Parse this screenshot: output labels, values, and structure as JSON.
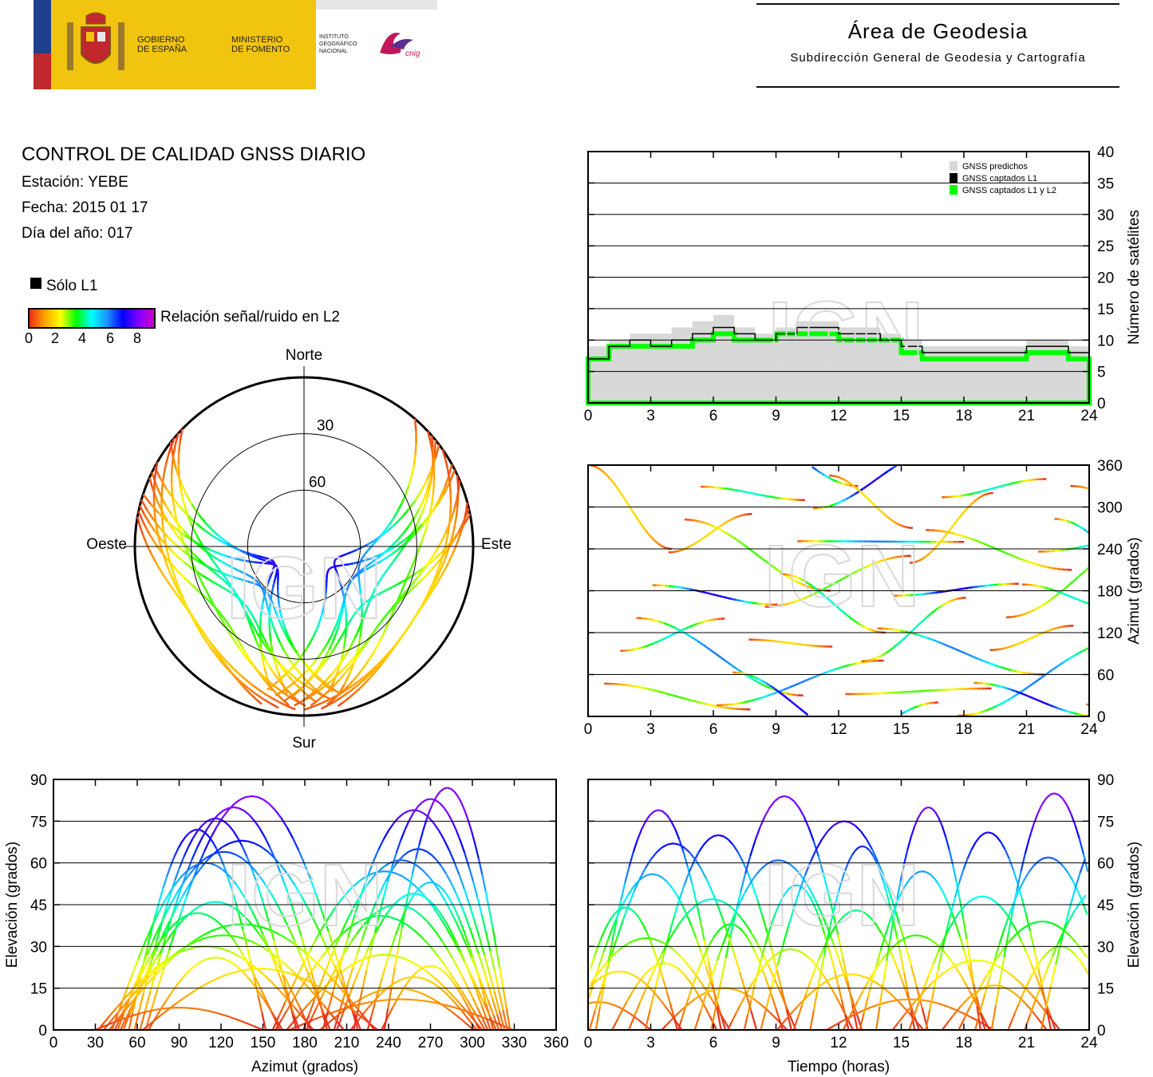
{
  "header": {
    "gov_text_1": "GOBIERNO",
    "gov_text_2": "DE ESPAÑA",
    "min_text_1": "MINISTERIO",
    "min_text_2": "DE FOMENTO",
    "inst_text_1": "INSTITUTO",
    "inst_text_2": "GEOGRÁFICO",
    "inst_text_3": "NACIONAL",
    "cnig_text": "cnig",
    "area_title": "Área de Geodesia",
    "area_subtitle": "Subdirección General de Geodesia y Cartografía"
  },
  "report": {
    "title": "CONTROL DE CALIDAD GNSS DIARIO",
    "station": "Estación: YEBE",
    "date": "Fecha: 2015 01 17",
    "doy": "Día del año: 017"
  },
  "legend": {
    "solo_l1": "Sólo L1",
    "snr_label": "Relación señal/ruido en L2",
    "snr_ticks": [
      "0",
      "2",
      "4",
      "6",
      "8"
    ]
  },
  "watermark": "IGN",
  "colors": {
    "predicted": "#d8d8d8",
    "captured_l1": "#000000",
    "captured_l1_l2": "#00ff00",
    "grid": "#000000"
  },
  "chart_data": [
    {
      "type": "area",
      "name": "satellite-count",
      "xlim": [
        0,
        24
      ],
      "ylim": [
        0,
        40
      ],
      "x_ticks": [
        0,
        3,
        6,
        9,
        12,
        15,
        18,
        21,
        24
      ],
      "y_ticks": [
        0,
        5,
        10,
        15,
        20,
        25,
        30,
        35,
        40
      ],
      "ylabel": "Número de satélites",
      "legend_position": "top-right",
      "series": [
        {
          "name": "GNSS predichos",
          "x": [
            0,
            1,
            2,
            3,
            4,
            5,
            6,
            7,
            8,
            9,
            10,
            11,
            12,
            13,
            14,
            15,
            16,
            17,
            18,
            19,
            20,
            21,
            22,
            23,
            24
          ],
          "values": [
            9,
            10,
            11,
            11,
            12,
            13,
            14,
            12,
            11,
            12,
            13,
            13,
            12,
            12,
            11,
            10,
            9,
            9,
            9,
            9,
            9,
            10,
            10,
            9,
            9
          ]
        },
        {
          "name": "GNSS captados L1",
          "x": [
            0,
            1,
            2,
            3,
            4,
            5,
            6,
            7,
            8,
            9,
            10,
            11,
            12,
            13,
            14,
            15,
            16,
            17,
            18,
            19,
            20,
            21,
            22,
            23,
            24
          ],
          "values": [
            7,
            9,
            10,
            9,
            10,
            11,
            12,
            11,
            10,
            11,
            12,
            12,
            11,
            11,
            10,
            9,
            8,
            8,
            8,
            8,
            8,
            9,
            9,
            8,
            8
          ]
        },
        {
          "name": "GNSS captados L1 y L2",
          "x": [
            0,
            1,
            2,
            3,
            4,
            5,
            6,
            7,
            8,
            9,
            10,
            11,
            12,
            13,
            14,
            15,
            16,
            17,
            18,
            19,
            20,
            21,
            22,
            23,
            24
          ],
          "values": [
            7,
            9,
            9,
            9,
            9,
            10,
            11,
            10,
            10,
            11,
            11,
            11,
            10,
            10,
            10,
            8,
            7,
            7,
            7,
            7,
            7,
            8,
            8,
            7,
            7
          ]
        }
      ]
    },
    {
      "type": "scatter",
      "name": "skyplot",
      "direction_labels": {
        "north": "Norte",
        "south": "Sur",
        "east": "Este",
        "west": "Oeste"
      },
      "ring_labels": [
        "30",
        "60"
      ]
    },
    {
      "type": "scatter",
      "name": "azimuth-vs-time",
      "xlim": [
        0,
        24
      ],
      "ylim": [
        0,
        360
      ],
      "x_ticks": [
        0,
        3,
        6,
        9,
        12,
        15,
        18,
        21,
        24
      ],
      "y_ticks": [
        0,
        60,
        120,
        180,
        240,
        300,
        360
      ],
      "ylabel": "Azimut (grados)"
    },
    {
      "type": "scatter",
      "name": "elevation-vs-azimuth",
      "xlim": [
        0,
        360
      ],
      "ylim": [
        0,
        90
      ],
      "x_ticks": [
        0,
        30,
        60,
        90,
        120,
        150,
        180,
        210,
        240,
        270,
        300,
        330,
        360
      ],
      "y_ticks": [
        0,
        15,
        30,
        45,
        60,
        75,
        90
      ],
      "xlabel": "Azimut (grados)",
      "ylabel": "Elevación (grados)"
    },
    {
      "type": "scatter",
      "name": "elevation-vs-time",
      "xlim": [
        0,
        24
      ],
      "ylim": [
        0,
        90
      ],
      "x_ticks": [
        0,
        3,
        6,
        9,
        12,
        15,
        18,
        21,
        24
      ],
      "y_ticks": [
        0,
        15,
        30,
        45,
        60,
        75,
        90
      ],
      "xlabel": "Tiempo (horas)",
      "ylabel": "Elevación (grados)"
    }
  ]
}
